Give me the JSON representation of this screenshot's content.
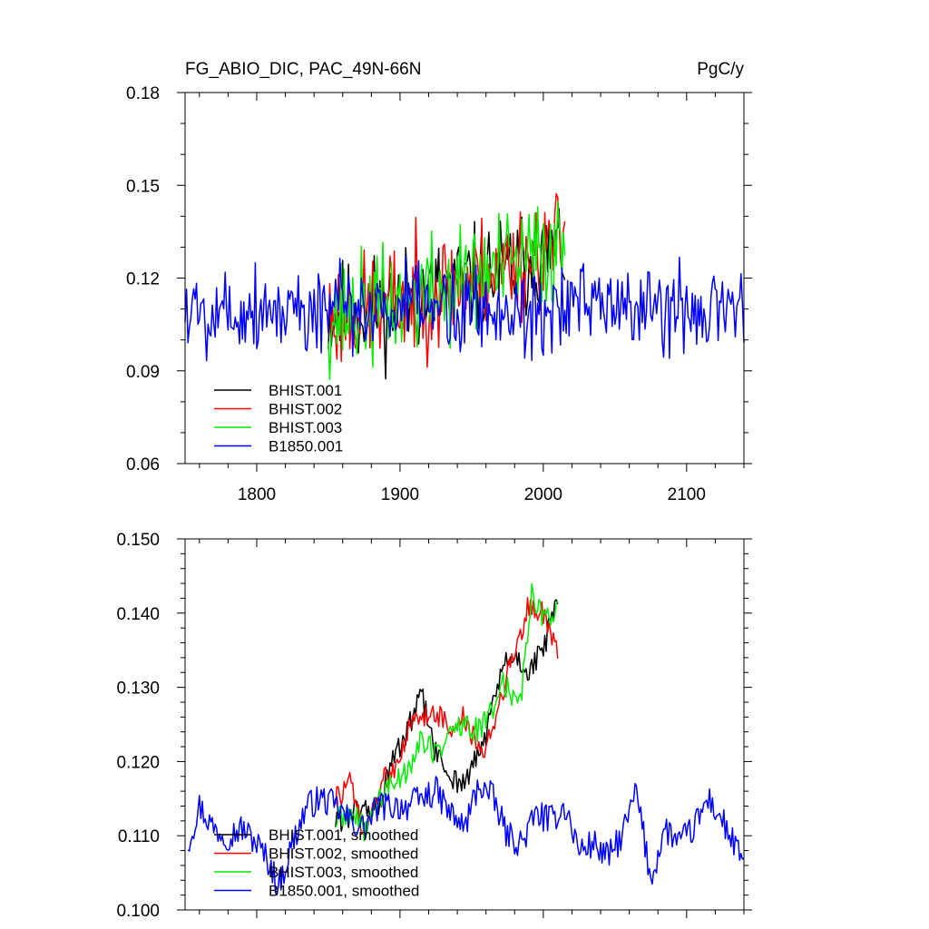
{
  "chart_data": [
    {
      "type": "line",
      "title": "FG_ABIO_DIC, PAC_49N-66N",
      "units": "PgC/y",
      "xlim": [
        1750,
        2140
      ],
      "ylim": [
        0.06,
        0.18
      ],
      "xticks": [
        1800,
        1900,
        2000,
        2100
      ],
      "yticks": [
        0.06,
        0.09,
        0.12,
        0.15,
        0.18
      ],
      "xtick_labels": [
        "1800",
        "1900",
        "2000",
        "2100"
      ],
      "ytick_labels": [
        "0.06",
        "0.09",
        "0.12",
        "0.15",
        "0.18"
      ],
      "legend_position": "lower-left",
      "series": [
        {
          "name": "BHIST.001",
          "color": "#000000",
          "x_start": 1850,
          "x_end": 2015,
          "base": 0.108,
          "trend": 0.022,
          "noise": 0.015,
          "seed": 11
        },
        {
          "name": "BHIST.002",
          "color": "#ff0000",
          "x_start": 1850,
          "x_end": 2015,
          "base": 0.108,
          "trend": 0.024,
          "noise": 0.016,
          "seed": 23
        },
        {
          "name": "BHIST.003",
          "color": "#00ee00",
          "x_start": 1850,
          "x_end": 2015,
          "base": 0.108,
          "trend": 0.023,
          "noise": 0.016,
          "seed": 37
        },
        {
          "name": "B1850.001",
          "color": "#0000ff",
          "x_start": 1750,
          "x_end": 2140,
          "base": 0.11,
          "trend": 0.0,
          "noise": 0.013,
          "seed": 5
        }
      ]
    },
    {
      "type": "line",
      "xlim": [
        1750,
        2140
      ],
      "ylim": [
        0.1,
        0.15
      ],
      "xticks": [
        1800,
        1900,
        2000,
        2100
      ],
      "yticks": [
        0.1,
        0.11,
        0.12,
        0.13,
        0.14,
        0.15
      ],
      "ytick_labels": [
        "0.100",
        "0.110",
        "0.120",
        "0.130",
        "0.140",
        "0.150"
      ],
      "legend_position": "lower-left",
      "series": [
        {
          "name": "BHIST.001, smoothed",
          "color": "#000000",
          "keypoints": [
            [
              1855,
              0.112
            ],
            [
              1870,
              0.113
            ],
            [
              1885,
              0.114
            ],
            [
              1895,
              0.12
            ],
            [
              1905,
              0.124
            ],
            [
              1915,
              0.129
            ],
            [
              1925,
              0.121
            ],
            [
              1935,
              0.118
            ],
            [
              1945,
              0.117
            ],
            [
              1955,
              0.121
            ],
            [
              1962,
              0.125
            ],
            [
              1972,
              0.133
            ],
            [
              1982,
              0.134
            ],
            [
              1990,
              0.132
            ],
            [
              2000,
              0.135
            ],
            [
              2005,
              0.139
            ],
            [
              2010,
              0.141
            ]
          ],
          "jitter": 0.0018,
          "seed": 61
        },
        {
          "name": "BHIST.002, smoothed",
          "color": "#ff0000",
          "keypoints": [
            [
              1855,
              0.115
            ],
            [
              1865,
              0.117
            ],
            [
              1875,
              0.11
            ],
            [
              1885,
              0.116
            ],
            [
              1895,
              0.119
            ],
            [
              1905,
              0.124
            ],
            [
              1915,
              0.126
            ],
            [
              1925,
              0.127
            ],
            [
              1935,
              0.124
            ],
            [
              1945,
              0.126
            ],
            [
              1955,
              0.121
            ],
            [
              1962,
              0.123
            ],
            [
              1972,
              0.13
            ],
            [
              1982,
              0.136
            ],
            [
              1990,
              0.141
            ],
            [
              2000,
              0.14
            ],
            [
              2005,
              0.137
            ],
            [
              2010,
              0.135
            ]
          ],
          "jitter": 0.0018,
          "seed": 73
        },
        {
          "name": "BHIST.003, smoothed",
          "color": "#00ee00",
          "keypoints": [
            [
              1855,
              0.112
            ],
            [
              1865,
              0.113
            ],
            [
              1875,
              0.111
            ],
            [
              1885,
              0.115
            ],
            [
              1895,
              0.117
            ],
            [
              1905,
              0.119
            ],
            [
              1915,
              0.123
            ],
            [
              1925,
              0.121
            ],
            [
              1935,
              0.124
            ],
            [
              1945,
              0.125
            ],
            [
              1955,
              0.124
            ],
            [
              1962,
              0.126
            ],
            [
              1972,
              0.131
            ],
            [
              1980,
              0.128
            ],
            [
              1985,
              0.13
            ],
            [
              1992,
              0.143
            ],
            [
              2000,
              0.139
            ],
            [
              2005,
              0.14
            ],
            [
              2010,
              0.141
            ]
          ],
          "jitter": 0.0018,
          "seed": 89
        },
        {
          "name": "B1850.001, smoothed",
          "color": "#0000ff",
          "keypoints": [
            [
              1752,
              0.109
            ],
            [
              1760,
              0.114
            ],
            [
              1770,
              0.111
            ],
            [
              1780,
              0.11
            ],
            [
              1790,
              0.111
            ],
            [
              1800,
              0.109
            ],
            [
              1810,
              0.106
            ],
            [
              1815,
              0.103
            ],
            [
              1825,
              0.109
            ],
            [
              1835,
              0.114
            ],
            [
              1845,
              0.115
            ],
            [
              1855,
              0.114
            ],
            [
              1865,
              0.112
            ],
            [
              1875,
              0.111
            ],
            [
              1885,
              0.114
            ],
            [
              1895,
              0.114
            ],
            [
              1905,
              0.114
            ],
            [
              1915,
              0.115
            ],
            [
              1925,
              0.116
            ],
            [
              1935,
              0.113
            ],
            [
              1945,
              0.111
            ],
            [
              1955,
              0.117
            ],
            [
              1965,
              0.115
            ],
            [
              1975,
              0.11
            ],
            [
              1985,
              0.109
            ],
            [
              1995,
              0.113
            ],
            [
              2005,
              0.112
            ],
            [
              2015,
              0.114
            ],
            [
              2025,
              0.108
            ],
            [
              2035,
              0.109
            ],
            [
              2045,
              0.107
            ],
            [
              2055,
              0.11
            ],
            [
              2065,
              0.116
            ],
            [
              2075,
              0.104
            ],
            [
              2085,
              0.111
            ],
            [
              2095,
              0.109
            ],
            [
              2105,
              0.111
            ],
            [
              2115,
              0.115
            ],
            [
              2125,
              0.112
            ],
            [
              2135,
              0.108
            ],
            [
              2140,
              0.106
            ]
          ],
          "jitter": 0.002,
          "seed": 97
        }
      ]
    }
  ]
}
